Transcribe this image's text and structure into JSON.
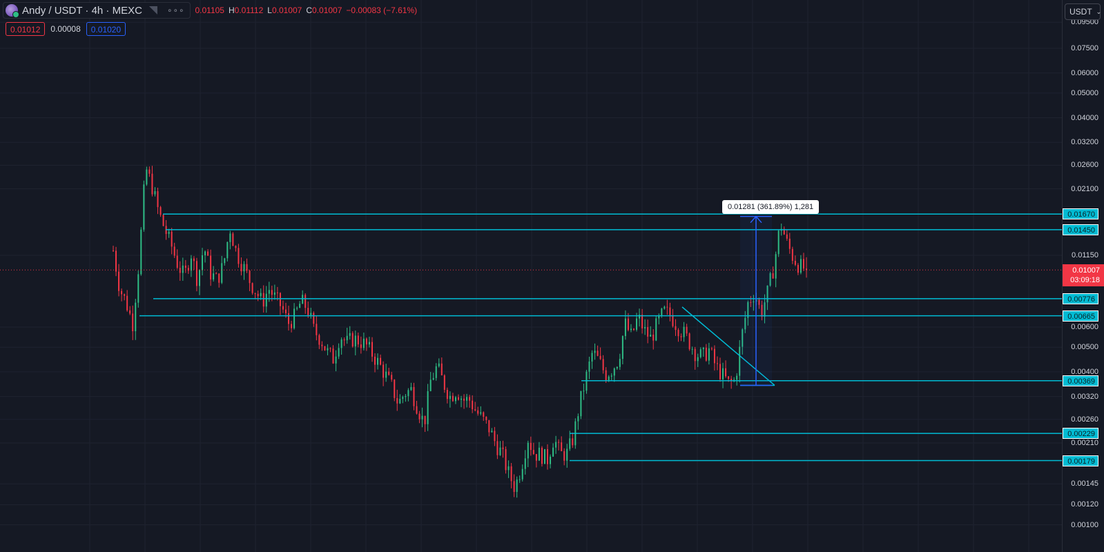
{
  "header": {
    "symbol": "Andy / USDT · 4h · MEXC",
    "more_label": "∘∘∘",
    "ohlc": {
      "o": "0.01105",
      "h_label": "H",
      "h": "0.01112",
      "l_label": "L",
      "l": "0.01007",
      "c_label": "C",
      "c": "0.01007",
      "change": "−0.00083 (−7.61%)"
    }
  },
  "quote": {
    "sell": "0.01012",
    "spread": "0.00008",
    "buy": "0.01020"
  },
  "currency": {
    "label": "USDT"
  },
  "price_scale": {
    "ticks": [
      "0.09500",
      "0.07500",
      "0.06000",
      "0.05000",
      "0.04000",
      "0.03200",
      "0.02600",
      "0.02100",
      "0.01150",
      "0.00600",
      "0.00500",
      "0.00400",
      "0.00320",
      "0.00260",
      "0.00210",
      "0.00145",
      "0.00120",
      "0.00100"
    ],
    "current_price": "0.01007",
    "countdown": "03:09:18",
    "levels": [
      "0.01670",
      "0.01450",
      "0.00776",
      "0.00665",
      "0.00369",
      "0.00229",
      "0.00179"
    ]
  },
  "measure": {
    "label": "0.01281 (361.89%) 1,281",
    "from": 0.00354,
    "to": 0.01635
  },
  "colors": {
    "background": "#151924",
    "grid": "#1f2330",
    "up": "#2ebd85",
    "down": "#f23645",
    "level": "#00bcd4",
    "measure": "#2962ff"
  },
  "chart_data": {
    "type": "candlestick",
    "scale": "log",
    "ylim": [
      0.00092,
      0.1
    ],
    "levels": [
      0.0167,
      0.0145,
      0.00776,
      0.00665,
      0.00369,
      0.00229,
      0.00179
    ],
    "triangle": {
      "apex": 0.0072,
      "base": 0.00354
    },
    "current_price": 0.01007,
    "close_path": [
      0.012,
      0.0085,
      0.0075,
      0.0062,
      0.011,
      0.0255,
      0.0215,
      0.017,
      0.0145,
      0.0125,
      0.0105,
      0.0095,
      0.0118,
      0.0092,
      0.0125,
      0.0098,
      0.0092,
      0.0105,
      0.0148,
      0.0118,
      0.0105,
      0.0092,
      0.0083,
      0.0075,
      0.0085,
      0.0078,
      0.0072,
      0.0062,
      0.0066,
      0.0076,
      0.0071,
      0.0058,
      0.0054,
      0.0048,
      0.0045,
      0.0056,
      0.0052,
      0.0054,
      0.0053,
      0.0051,
      0.0047,
      0.0043,
      0.0039,
      0.0035,
      0.003,
      0.0033,
      0.0034,
      0.0029,
      0.0025,
      0.0037,
      0.0042,
      0.0036,
      0.0032,
      0.0034,
      0.0031,
      0.0031,
      0.0028,
      0.0026,
      0.0024,
      0.0021,
      0.0019,
      0.0016,
      0.0014,
      0.0017,
      0.0022,
      0.0019,
      0.0019,
      0.0018,
      0.0022,
      0.0019,
      0.0019,
      0.0022,
      0.003,
      0.0038,
      0.0048,
      0.0044,
      0.0039,
      0.0041,
      0.0045,
      0.0062,
      0.0055,
      0.0066,
      0.0058,
      0.0054,
      0.0062,
      0.0069,
      0.0067,
      0.0061,
      0.0057,
      0.0052,
      0.0047,
      0.0046,
      0.0049,
      0.0042,
      0.0039,
      0.0036,
      0.0037,
      0.0055,
      0.0075,
      0.0082,
      0.0068,
      0.0082,
      0.0105,
      0.0155,
      0.0128,
      0.0112,
      0.0104,
      0.0101
    ]
  }
}
